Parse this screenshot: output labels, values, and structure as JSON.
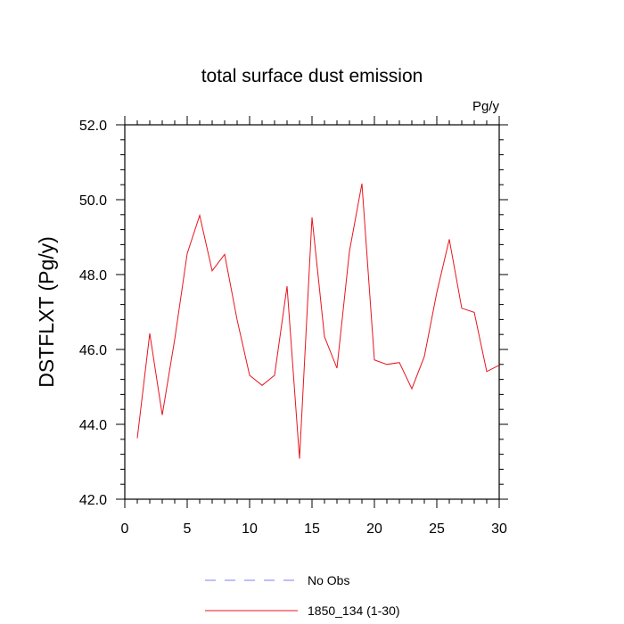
{
  "chart_data": {
    "type": "line",
    "title": "total surface dust emission",
    "units_label": "Pg/y",
    "ylabel": "DSTFLXT  (Pg/y)",
    "xlabel": "",
    "xlim": [
      0,
      30
    ],
    "ylim": [
      42,
      52
    ],
    "x_ticks": [
      0,
      5,
      10,
      15,
      20,
      25,
      30
    ],
    "x_tick_labels": [
      "0",
      "5",
      "10",
      "15",
      "20",
      "25",
      "30"
    ],
    "y_ticks": [
      42,
      44,
      46,
      48,
      50,
      52
    ],
    "y_tick_labels": [
      "42.0",
      "44.0",
      "46.0",
      "48.0",
      "50.0",
      "52.0"
    ],
    "grid": false,
    "legend_position": "bottom",
    "series": [
      {
        "name": "1850_134 (1-30)",
        "color": "#e8141e",
        "style": "solid",
        "x": [
          1,
          2,
          3,
          4,
          5,
          6,
          7,
          8,
          9,
          10,
          11,
          12,
          13,
          14,
          15,
          16,
          17,
          18,
          19,
          20,
          21,
          22,
          23,
          24,
          25,
          26,
          27,
          28,
          29,
          30
        ],
        "values": [
          43.63,
          46.43,
          44.25,
          46.27,
          48.56,
          49.58,
          48.1,
          48.54,
          46.79,
          45.31,
          45.04,
          45.31,
          47.69,
          43.08,
          49.53,
          46.34,
          45.5,
          48.62,
          50.43,
          45.72,
          45.6,
          45.65,
          44.95,
          45.81,
          47.52,
          48.94,
          47.1,
          46.99,
          45.41,
          45.58
        ]
      }
    ],
    "legend": [
      {
        "label": "No Obs",
        "color": "#7d7dff",
        "style": "dashed"
      },
      {
        "label": "1850_134 (1-30)",
        "color": "#e8141e",
        "style": "solid"
      }
    ]
  }
}
